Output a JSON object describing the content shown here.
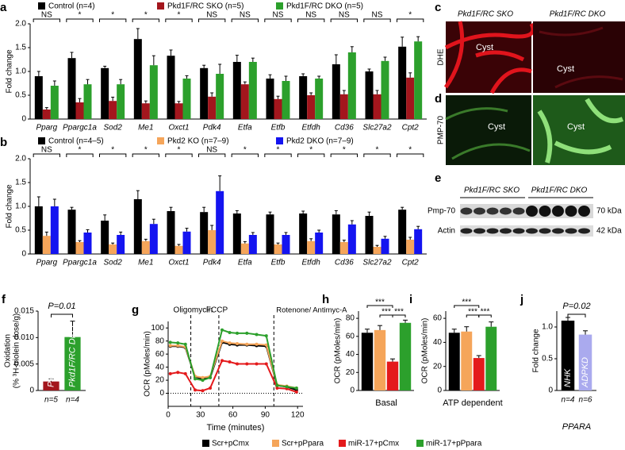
{
  "chart_data": [
    {
      "type": "grouped-bar",
      "panel": "a",
      "ylabel": "Fold change",
      "categories": [
        "Pparg",
        "Ppargc1a",
        "Sod2",
        "Me1",
        "Oxct1",
        "Pdk4",
        "Etfa",
        "Etfb",
        "Etfdh",
        "Cd36",
        "Slc27a2",
        "Cpt2"
      ],
      "annotations": [
        "NS",
        "*",
        "*",
        "*",
        "*",
        "NS",
        "NS",
        "NS",
        "NS",
        "NS",
        "NS",
        "*"
      ],
      "series": [
        {
          "name": "Control (n=4)",
          "color": "#000000",
          "values": [
            0.9,
            1.28,
            1.07,
            1.68,
            1.33,
            1.07,
            1.2,
            0.85,
            0.9,
            1.15,
            1.0,
            1.52
          ],
          "errors": [
            0.1,
            0.12,
            0.04,
            0.22,
            0.12,
            0.06,
            0.14,
            0.08,
            0.05,
            0.2,
            0.05,
            0.2
          ]
        },
        {
          "name": "Pkd1F/RC SKO (n=5)",
          "color": "#a3161d",
          "values": [
            0.2,
            0.35,
            0.38,
            0.33,
            0.33,
            0.47,
            0.73,
            0.42,
            0.5,
            0.52,
            0.52,
            0.87
          ],
          "errors": [
            0.04,
            0.08,
            0.08,
            0.05,
            0.04,
            0.08,
            0.05,
            0.06,
            0.05,
            0.08,
            0.08,
            0.1
          ]
        },
        {
          "name": "Pkd1F/RC DKO (n=5)",
          "color": "#2ca02c",
          "values": [
            0.7,
            0.73,
            0.73,
            1.13,
            0.85,
            0.95,
            1.2,
            0.8,
            0.85,
            1.4,
            1.22,
            1.63
          ],
          "errors": [
            0.1,
            0.1,
            0.1,
            0.2,
            0.06,
            0.2,
            0.08,
            0.1,
            0.05,
            0.12,
            0.08,
            0.1
          ]
        }
      ],
      "ylim": [
        0,
        2
      ],
      "yticks": [
        0,
        0.5,
        {
          "value": 1,
          "label": "1.0"
        },
        1.5,
        {
          "value": 2,
          "label": "2.0"
        }
      ]
    },
    {
      "type": "grouped-bar",
      "panel": "b",
      "ylabel": "Fold change",
      "categories": [
        "Pparg",
        "Ppargc1a",
        "Sod2",
        "Me1",
        "Oxct1",
        "Pdk4",
        "Etfa",
        "Etfb",
        "Etfdh",
        "Cd36",
        "Slc27a2",
        "Cpt2"
      ],
      "annotations": [
        "NS",
        "*",
        "*",
        "*",
        "*",
        "NS",
        "*",
        "*",
        "*",
        "*",
        "*",
        "*"
      ],
      "series": [
        {
          "name": "Control (n=4–5)",
          "color": "#000000",
          "values": [
            1.0,
            0.93,
            0.7,
            1.15,
            0.9,
            0.88,
            0.85,
            0.83,
            0.85,
            0.83,
            0.8,
            0.93
          ],
          "errors": [
            0.2,
            0.05,
            0.12,
            0.18,
            0.08,
            0.1,
            0.06,
            0.05,
            0.05,
            0.08,
            0.08,
            0.05
          ]
        },
        {
          "name": "Pkd2 KO (n=7–9)",
          "color": "#f5a55a",
          "values": [
            0.38,
            0.25,
            0.2,
            0.27,
            0.17,
            0.5,
            0.22,
            0.2,
            0.27,
            0.25,
            0.15,
            0.3
          ],
          "errors": [
            0.08,
            0.03,
            0.03,
            0.04,
            0.03,
            0.1,
            0.04,
            0.03,
            0.05,
            0.04,
            0.03,
            0.05
          ]
        },
        {
          "name": "Pkd2 DKO (n=7–9)",
          "color": "#1414f0",
          "values": [
            1.0,
            0.45,
            0.4,
            0.63,
            0.47,
            1.32,
            0.4,
            0.4,
            0.45,
            0.62,
            0.32,
            0.52
          ],
          "errors": [
            0.15,
            0.06,
            0.06,
            0.1,
            0.07,
            0.32,
            0.05,
            0.05,
            0.05,
            0.08,
            0.05,
            0.06
          ]
        }
      ],
      "ylim": [
        0,
        2
      ],
      "yticks": [
        0,
        0.5,
        {
          "value": 1,
          "label": "1.0"
        },
        1.5,
        {
          "value": 2,
          "label": "2.0"
        }
      ]
    },
    {
      "type": "bar",
      "panel": "f",
      "ylabel": [
        "Oxidation",
        "(% ³H-triolein dose/g)"
      ],
      "values": [
        0.0017,
        0.0101
      ],
      "errors": [
        0.0005,
        0.003
      ],
      "colors": [
        "#a3161d",
        "#2ca02c"
      ],
      "bar_labels": [
        "Pkd1F/RC SKO",
        "Pkd1F/RC DKO"
      ],
      "n_labels": [
        "n=5",
        "n=4"
      ],
      "annotation": "P=0.01",
      "ylim": [
        0,
        0.015
      ],
      "yticks": [
        0,
        0.005,
        {
          "value": 0.01,
          "label": "0.010"
        },
        0.015
      ]
    },
    {
      "type": "line",
      "panel": "g",
      "xlabel": "Time (minutes)",
      "ylabel": "OCR (pMoles/min)",
      "x": [
        2,
        9,
        16,
        25,
        32,
        39,
        50,
        57,
        64,
        73,
        82,
        91,
        101,
        110,
        119
      ],
      "injections": [
        21,
        47,
        98
      ],
      "injection_labels": [
        "Oligomycin",
        "FCCP",
        "Rotenone/ Antimyc-A"
      ],
      "series": [
        {
          "name": "Scr+pCmx",
          "color": "#000000",
          "values": [
            72,
            72,
            70,
            25,
            22,
            24,
            78,
            75,
            74,
            74,
            73,
            72,
            12,
            10,
            5
          ]
        },
        {
          "name": "Scr+pPpara",
          "color": "#f5a55a",
          "values": [
            73,
            73,
            71,
            26,
            24,
            26,
            80,
            77,
            76,
            75,
            75,
            74,
            13,
            11,
            8
          ]
        },
        {
          "name": "miR-17+pCmx",
          "color": "#e41a1c",
          "values": [
            30,
            32,
            30,
            5,
            4,
            8,
            50,
            48,
            45,
            45,
            45,
            45,
            8,
            7,
            2
          ]
        },
        {
          "name": "miR-17+pPpara",
          "color": "#2ca02c",
          "values": [
            78,
            77,
            75,
            22,
            20,
            24,
            97,
            93,
            92,
            92,
            90,
            88,
            12,
            10,
            8
          ]
        }
      ],
      "xlim": [
        0,
        125
      ],
      "xticks": [
        0,
        30,
        60,
        90,
        120
      ],
      "ylim": [
        -20,
        110
      ],
      "yticks": [
        0,
        20,
        40,
        60,
        80,
        100
      ]
    },
    {
      "type": "bar",
      "panel": "h",
      "ylabel": "OCR (pMoles/min)",
      "xlabel": "Basal",
      "values": [
        64,
        67,
        32,
        75
      ],
      "errors": [
        4,
        5,
        3,
        3
      ],
      "colors": [
        "#000000",
        "#f5a55a",
        "#e41a1c",
        "#2ca02c"
      ],
      "annotations": [
        "***",
        "***",
        "***"
      ],
      "ylim": [
        0,
        88
      ],
      "yticks": [
        0,
        20,
        40,
        60,
        80
      ]
    },
    {
      "type": "bar",
      "panel": "i",
      "ylabel": "OCR (pMoles/min)",
      "xlabel": "ATP dependent",
      "values": [
        48,
        49,
        27,
        53
      ],
      "errors": [
        3,
        4,
        2,
        4
      ],
      "colors": [
        "#000000",
        "#f5a55a",
        "#e41a1c",
        "#2ca02c"
      ],
      "annotations": [
        "***",
        "***",
        "***"
      ],
      "ylim": [
        0,
        66
      ],
      "yticks": [
        0,
        20,
        40,
        60
      ]
    },
    {
      "type": "bar",
      "panel": "j",
      "ylabel": "Fold change",
      "xlabel": "PPARA",
      "values": [
        1.1,
        0.88
      ],
      "errors": [
        0.05,
        0.06
      ],
      "colors": [
        "#000000",
        "#aaaaee"
      ],
      "bar_labels": [
        "NHK",
        "ADPKD"
      ],
      "n_labels": [
        "n=4",
        "n=6"
      ],
      "annotation": "P=0.02",
      "ylim": [
        0,
        1.25
      ],
      "yticks": [
        0,
        0.5,
        {
          "value": 1,
          "label": "1.0"
        }
      ]
    }
  ],
  "images": {
    "c": {
      "panel": "c",
      "columns": [
        "Pkd1F/RC SKO",
        "Pkd1F/RC DKO"
      ],
      "row_label": "DHE",
      "labels": [
        "Cyst",
        "Cyst"
      ]
    },
    "d": {
      "panel": "d",
      "row_label": "PMP-70",
      "labels": [
        "Cyst",
        "Cyst"
      ]
    },
    "e": {
      "panel": "e",
      "groups": [
        "Pkd1F/RC SKO",
        "Pkd1F/RC DKO"
      ],
      "rows": [
        "Pmp-70",
        "Actin"
      ],
      "sizes": [
        "70 kDa",
        "42 kDa"
      ]
    }
  }
}
